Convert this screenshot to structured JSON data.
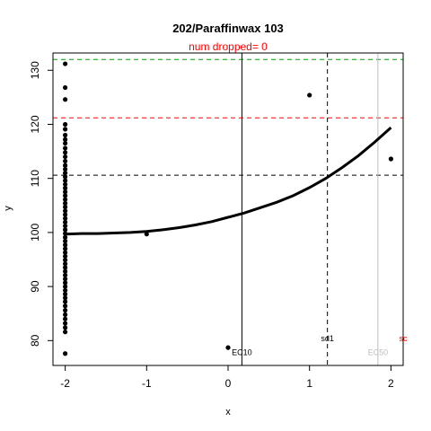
{
  "chart_data": {
    "type": "scatter",
    "title": "202/Paraffinwax 103",
    "subtitle": "num dropped= 0",
    "xlabel": "x",
    "ylabel": "y",
    "xlim": [
      -2.15,
      2.15
    ],
    "ylim": [
      75.4,
      133.2
    ],
    "x_ticks": [
      -2,
      -1,
      0,
      1,
      2
    ],
    "y_ticks": [
      80,
      90,
      100,
      110,
      120,
      130
    ],
    "colors": {
      "subtitle": "#ff0000",
      "points": "#000000",
      "curve": "#000000",
      "green_hline": "#00a000",
      "red_hline": "#ff0000",
      "ec50_line": "#bebebe",
      "right_red_vline": "#ff0000"
    },
    "points": [
      {
        "x": -2,
        "y": 131.2
      },
      {
        "x": -2,
        "y": 126.8
      },
      {
        "x": -2,
        "y": 124.6
      },
      {
        "x": -2,
        "y": 120.0
      },
      {
        "x": -2,
        "y": 119.1
      },
      {
        "x": -2,
        "y": 118.0
      },
      {
        "x": -2,
        "y": 117.2
      },
      {
        "x": -2,
        "y": 116.5
      },
      {
        "x": -2,
        "y": 115.6
      },
      {
        "x": -2,
        "y": 114.8
      },
      {
        "x": -2,
        "y": 114.0
      },
      {
        "x": -2,
        "y": 113.2
      },
      {
        "x": -2,
        "y": 112.4
      },
      {
        "x": -2,
        "y": 111.7
      },
      {
        "x": -2,
        "y": 111.0
      },
      {
        "x": -2,
        "y": 110.3
      },
      {
        "x": -2,
        "y": 109.6
      },
      {
        "x": -2,
        "y": 108.9
      },
      {
        "x": -2,
        "y": 108.2
      },
      {
        "x": -2,
        "y": 107.5
      },
      {
        "x": -2,
        "y": 106.8
      },
      {
        "x": -2,
        "y": 106.1
      },
      {
        "x": -2,
        "y": 105.4
      },
      {
        "x": -2,
        "y": 104.7
      },
      {
        "x": -2,
        "y": 104.0
      },
      {
        "x": -2,
        "y": 103.3
      },
      {
        "x": -2,
        "y": 102.6
      },
      {
        "x": -2,
        "y": 101.9
      },
      {
        "x": -2,
        "y": 101.2
      },
      {
        "x": -2,
        "y": 100.5
      },
      {
        "x": -2,
        "y": 99.8
      },
      {
        "x": -2,
        "y": 99.1
      },
      {
        "x": -2,
        "y": 98.4
      },
      {
        "x": -2,
        "y": 97.7
      },
      {
        "x": -2,
        "y": 97.0
      },
      {
        "x": -2,
        "y": 96.3
      },
      {
        "x": -2,
        "y": 95.6
      },
      {
        "x": -2,
        "y": 94.9
      },
      {
        "x": -2,
        "y": 94.2
      },
      {
        "x": -2,
        "y": 93.5
      },
      {
        "x": -2,
        "y": 92.8
      },
      {
        "x": -2,
        "y": 92.1
      },
      {
        "x": -2,
        "y": 91.4
      },
      {
        "x": -2,
        "y": 90.7
      },
      {
        "x": -2,
        "y": 90.0
      },
      {
        "x": -2,
        "y": 89.3
      },
      {
        "x": -2,
        "y": 88.6
      },
      {
        "x": -2,
        "y": 87.9
      },
      {
        "x": -2,
        "y": 87.2
      },
      {
        "x": -2,
        "y": 86.4
      },
      {
        "x": -2,
        "y": 85.6
      },
      {
        "x": -2,
        "y": 84.8
      },
      {
        "x": -2,
        "y": 84.0
      },
      {
        "x": -2,
        "y": 83.2
      },
      {
        "x": -2,
        "y": 82.4
      },
      {
        "x": -2,
        "y": 81.6
      },
      {
        "x": -2,
        "y": 77.6
      },
      {
        "x": -1,
        "y": 99.7
      },
      {
        "x": 0,
        "y": 78.7
      },
      {
        "x": 1,
        "y": 125.4
      },
      {
        "x": 2,
        "y": 113.6
      }
    ],
    "curve_points": [
      {
        "x": -2.0,
        "y": 99.7
      },
      {
        "x": -1.8,
        "y": 99.8
      },
      {
        "x": -1.6,
        "y": 99.8
      },
      {
        "x": -1.4,
        "y": 99.9
      },
      {
        "x": -1.2,
        "y": 100.0
      },
      {
        "x": -1.0,
        "y": 100.2
      },
      {
        "x": -0.8,
        "y": 100.5
      },
      {
        "x": -0.6,
        "y": 100.9
      },
      {
        "x": -0.4,
        "y": 101.4
      },
      {
        "x": -0.2,
        "y": 102.0
      },
      {
        "x": 0.0,
        "y": 102.8
      },
      {
        "x": 0.2,
        "y": 103.6
      },
      {
        "x": 0.4,
        "y": 104.6
      },
      {
        "x": 0.6,
        "y": 105.6
      },
      {
        "x": 0.8,
        "y": 106.8
      },
      {
        "x": 1.0,
        "y": 108.3
      },
      {
        "x": 1.2,
        "y": 110.0
      },
      {
        "x": 1.4,
        "y": 112.0
      },
      {
        "x": 1.6,
        "y": 114.2
      },
      {
        "x": 1.8,
        "y": 116.7
      },
      {
        "x": 2.0,
        "y": 119.4
      }
    ],
    "hlines": [
      {
        "y": 132.0,
        "style": "dashed",
        "color": "#00a000"
      },
      {
        "y": 121.2,
        "style": "dashed",
        "color": "#ff0000"
      },
      {
        "y": 110.6,
        "style": "dashed",
        "color": "#000000"
      }
    ],
    "vlines": [
      {
        "x": 0.17,
        "style": "solid",
        "color": "#000000",
        "label": "EC10"
      },
      {
        "x": 1.22,
        "style": "dashed",
        "color": "#000000",
        "label": "sd1"
      },
      {
        "x": 1.84,
        "style": "solid",
        "color": "#bebebe",
        "label": "EC50"
      },
      {
        "x": 2.15,
        "style": "dashed",
        "color": "#ff0000",
        "label": "sc"
      }
    ],
    "annotations": [
      {
        "text": "EC10",
        "x": 0.17,
        "y": 77.3,
        "color": "#000000"
      },
      {
        "text": "sd1",
        "x": 1.22,
        "y": 79.9,
        "color": "#000000"
      },
      {
        "text": "EC50",
        "x": 1.84,
        "y": 77.3,
        "color": "#bebebe"
      },
      {
        "text": "sc",
        "x": 2.15,
        "y": 79.9,
        "color": "#ff0000"
      }
    ],
    "grid": false,
    "legend": "none"
  }
}
